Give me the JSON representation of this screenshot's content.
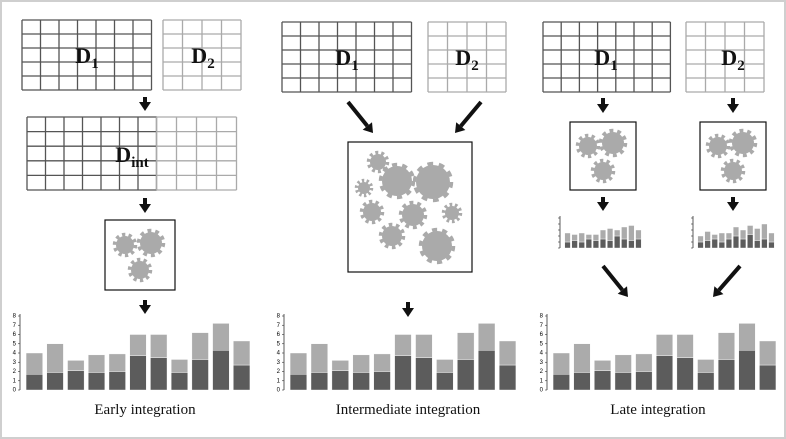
{
  "panels": [
    {
      "inputs": [
        {
          "letter": "D",
          "sub": "1"
        },
        {
          "letter": "D",
          "sub": "2"
        }
      ],
      "integrated": {
        "letter": "D",
        "sub": "int"
      },
      "chart": {
        "type": "bar",
        "stacked": true,
        "ylim": [
          0,
          8
        ],
        "yticks": [
          0,
          1,
          2,
          3,
          4,
          5,
          6,
          7,
          8
        ],
        "categories": [
          null,
          null,
          null,
          null,
          null,
          null,
          null,
          null,
          null,
          null,
          null
        ],
        "series": [
          {
            "color": "#5c5c5c",
            "values": [
              1.7,
              1.9,
              2.1,
              1.9,
              2.0,
              3.7,
              3.5,
              1.9,
              3.3,
              4.3,
              2.7
            ]
          },
          {
            "color": "#ababab",
            "values": [
              2.3,
              3.1,
              1.1,
              1.9,
              1.9,
              2.3,
              2.5,
              1.4,
              2.9,
              2.9,
              2.6
            ]
          }
        ]
      },
      "caption": "Early integration"
    },
    {
      "inputs": [
        {
          "letter": "D",
          "sub": "1"
        },
        {
          "letter": "D",
          "sub": "2"
        }
      ],
      "chart": {
        "type": "bar",
        "stacked": true,
        "ylim": [
          0,
          8
        ],
        "yticks": [
          0,
          1,
          2,
          3,
          4,
          5,
          6,
          7,
          8
        ],
        "categories": [
          null,
          null,
          null,
          null,
          null,
          null,
          null,
          null,
          null,
          null,
          null
        ],
        "series": [
          {
            "color": "#5c5c5c",
            "values": [
              1.7,
              1.9,
              2.1,
              1.9,
              2.0,
              3.7,
              3.5,
              1.9,
              3.3,
              4.3,
              2.7
            ]
          },
          {
            "color": "#ababab",
            "values": [
              2.3,
              3.1,
              1.1,
              1.9,
              1.9,
              2.3,
              2.5,
              1.4,
              2.9,
              2.9,
              2.6
            ]
          }
        ]
      },
      "caption": "Intermediate integration"
    },
    {
      "inputs": [
        {
          "letter": "D",
          "sub": "1"
        },
        {
          "letter": "D",
          "sub": "2"
        }
      ],
      "mini_charts": [
        {
          "type": "bar",
          "stacked": true,
          "ylim": [
            0,
            10
          ],
          "yticks": [
            0,
            2,
            4,
            6,
            8,
            10
          ],
          "categories": [
            null,
            null,
            null,
            null,
            null,
            null,
            null,
            null,
            null,
            null,
            null
          ],
          "series": [
            {
              "color": "#5c5c5c",
              "values": [
                2,
                2.5,
                2,
                3,
                2.5,
                3,
                2.5,
                4,
                3,
                2.5,
                3
              ]
            },
            {
              "color": "#ababab",
              "values": [
                3,
                2,
                3,
                1.5,
                2,
                3,
                4,
                2,
                4,
                5,
                3
              ]
            }
          ]
        },
        {
          "type": "bar",
          "stacked": true,
          "ylim": [
            0,
            10
          ],
          "yticks": [
            0,
            2,
            4,
            6,
            8,
            10
          ],
          "categories": [
            null,
            null,
            null,
            null,
            null,
            null,
            null,
            null,
            null,
            null,
            null
          ],
          "series": [
            {
              "color": "#5c5c5c",
              "values": [
                2,
                2.5,
                3,
                2,
                3,
                4,
                3,
                4.5,
                2.5,
                3,
                2
              ]
            },
            {
              "color": "#ababab",
              "values": [
                2,
                3,
                1.5,
                3,
                2,
                3,
                3,
                3,
                4,
                5,
                3
              ]
            }
          ]
        }
      ],
      "chart": {
        "type": "bar",
        "stacked": true,
        "ylim": [
          0,
          8
        ],
        "yticks": [
          0,
          1,
          2,
          3,
          4,
          5,
          6,
          7,
          8
        ],
        "categories": [
          null,
          null,
          null,
          null,
          null,
          null,
          null,
          null,
          null,
          null,
          null
        ],
        "series": [
          {
            "color": "#5c5c5c",
            "values": [
              1.7,
              1.9,
              2.1,
              1.9,
              2.0,
              3.7,
              3.5,
              1.9,
              3.3,
              4.3,
              2.7
            ]
          },
          {
            "color": "#ababab",
            "values": [
              2.3,
              3.1,
              1.1,
              1.9,
              1.9,
              2.3,
              2.5,
              1.4,
              2.9,
              2.9,
              2.6
            ]
          }
        ]
      },
      "caption": "Late integration"
    }
  ]
}
